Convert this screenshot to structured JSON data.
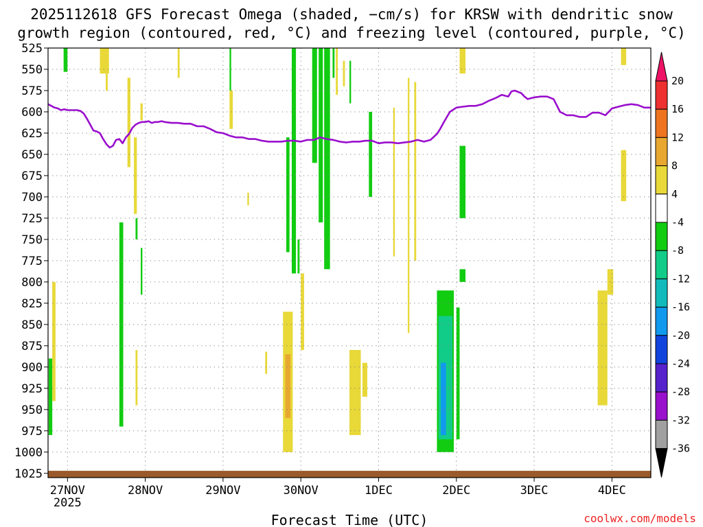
{
  "title_line1": "2025112618 GFS Forecast Omega (shaded, −cm/s) for KRSW with dendritic snow",
  "title_line2": "growth region (contoured, red, °C) and freezing level (contoured, purple, °C)",
  "credit": "coolwx.com/models",
  "colors": {
    "freezing_level": "#9a0ecd",
    "ground": "#9b5a2b",
    "grid": "#808080"
  },
  "chart_data": {
    "type": "heatmap",
    "title": "2025112618 GFS Forecast Omega (shaded, −cm/s) for KRSW with dendritic snow growth region (contoured, red, °C) and freezing level (contoured, purple, °C)",
    "xlabel": "Forecast Time (UTC)",
    "ylabel": "",
    "x_range_hours": [
      0,
      186
    ],
    "y_range_hpa": [
      525,
      1030
    ],
    "y_ticks": [
      "525",
      "550",
      "575",
      "600",
      "625",
      "650",
      "675",
      "700",
      "725",
      "750",
      "775",
      "800",
      "825",
      "850",
      "875",
      "900",
      "925",
      "950",
      "975",
      "1000",
      "1025"
    ],
    "x_ticks": [
      {
        "label": "27NOV",
        "sub": "2025",
        "hour": 6
      },
      {
        "label": "28NOV",
        "sub": "",
        "hour": 30
      },
      {
        "label": "29NOV",
        "sub": "",
        "hour": 54
      },
      {
        "label": "30NOV",
        "sub": "",
        "hour": 78
      },
      {
        "label": "1DEC",
        "sub": "",
        "hour": 102
      },
      {
        "label": "2DEC",
        "sub": "",
        "hour": 126
      },
      {
        "label": "3DEC",
        "sub": "",
        "hour": 150
      },
      {
        "label": "4DEC",
        "sub": "",
        "hour": 174
      }
    ],
    "colorbar": {
      "labels": [
        "20",
        "16",
        "12",
        "8",
        "4",
        "-4",
        "-8",
        "-12",
        "-16",
        "-20",
        "-24",
        "-28",
        "-32",
        "-36"
      ],
      "colors": [
        "#ee1366",
        "#ee3030",
        "#ee7420",
        "#e8a830",
        "#e8d838",
        "#ffffff",
        "#11cc11",
        "#11cc88",
        "#11bbbb",
        "#1199ee",
        "#1144dd",
        "#5522cc",
        "#9911cc",
        "#a0a0a0"
      ]
    },
    "freezing_level": {
      "hours": [
        0,
        1,
        2,
        3,
        4,
        5,
        6,
        7,
        8,
        9,
        10,
        11,
        12,
        13,
        14,
        15,
        16,
        17,
        18,
        19,
        20,
        21,
        22,
        23,
        24,
        25,
        26,
        27,
        28,
        29,
        30,
        31,
        32,
        33,
        34,
        35,
        36,
        38,
        40,
        42,
        44,
        46,
        48,
        50,
        52,
        54,
        56,
        58,
        60,
        62,
        64,
        66,
        68,
        70,
        72,
        74,
        76,
        78,
        80,
        82,
        84,
        86,
        88,
        90,
        92,
        94,
        96,
        98,
        100,
        102,
        104,
        106,
        108,
        110,
        112,
        114,
        116,
        118,
        120,
        121,
        122,
        124,
        126,
        128,
        130,
        132,
        134,
        136,
        138,
        140,
        142,
        143,
        144,
        146,
        147,
        148,
        150,
        152,
        154,
        156,
        158,
        160,
        162,
        164,
        166,
        168,
        170,
        172,
        174,
        176,
        178,
        180,
        182,
        184,
        186
      ],
      "values_hpa": [
        591,
        593,
        595,
        596,
        598,
        597,
        598,
        598,
        598,
        598,
        599,
        602,
        608,
        615,
        622,
        623,
        625,
        632,
        638,
        642,
        640,
        633,
        632,
        637,
        630,
        626,
        619,
        615,
        613,
        612,
        612,
        611,
        613,
        612,
        612,
        611,
        612,
        613,
        613,
        614,
        614,
        617,
        617,
        620,
        624,
        625,
        628,
        630,
        630,
        632,
        632,
        634,
        635,
        635,
        635,
        634,
        634,
        635,
        633,
        633,
        630,
        632,
        633,
        635,
        636,
        635,
        635,
        634,
        634,
        637,
        636,
        636,
        637,
        636,
        635,
        633,
        635,
        633,
        626,
        620,
        613,
        600,
        595,
        594,
        593,
        593,
        591,
        587,
        584,
        580,
        582,
        576,
        575,
        578,
        582,
        585,
        583,
        582,
        582,
        585,
        600,
        604,
        604,
        606,
        606,
        601,
        601,
        604,
        596,
        594,
        592,
        591,
        592,
        595,
        595
      ],
      "unit": "hPa"
    },
    "omega_shading": [
      {
        "color": "#11cc11",
        "h0": 0.2,
        "h1": 1.3,
        "p0": 890,
        "p1": 980
      },
      {
        "color": "#e8d838",
        "h0": 1.3,
        "h1": 2.3,
        "p0": 800,
        "p1": 940
      },
      {
        "color": "#11cc11",
        "h0": 4.8,
        "h1": 6.0,
        "p0": 525,
        "p1": 553
      },
      {
        "color": "#e8d838",
        "h0": 16.0,
        "h1": 18.8,
        "p0": 525,
        "p1": 555
      },
      {
        "color": "#e8d838",
        "h0": 17.8,
        "h1": 18.4,
        "p0": 555,
        "p1": 575
      },
      {
        "color": "#11cc11",
        "h0": 22.0,
        "h1": 23.2,
        "p0": 730,
        "p1": 970
      },
      {
        "color": "#e8d838",
        "h0": 24.5,
        "h1": 25.4,
        "p0": 560,
        "p1": 665
      },
      {
        "color": "#e8d838",
        "h0": 26.5,
        "h1": 27.4,
        "p0": 630,
        "p1": 720
      },
      {
        "color": "#11cc11",
        "h0": 27.0,
        "h1": 27.6,
        "p0": 725,
        "p1": 750
      },
      {
        "color": "#e8d838",
        "h0": 27.0,
        "h1": 27.6,
        "p0": 880,
        "p1": 945
      },
      {
        "color": "#11cc11",
        "h0": 28.6,
        "h1": 29.1,
        "p0": 760,
        "p1": 815
      },
      {
        "color": "#e8d838",
        "h0": 28.5,
        "h1": 29.2,
        "p0": 590,
        "p1": 610
      },
      {
        "color": "#e8d838",
        "h0": 40.0,
        "h1": 40.6,
        "p0": 525,
        "p1": 560
      },
      {
        "color": "#11cc11",
        "h0": 56.0,
        "h1": 56.5,
        "p0": 525,
        "p1": 575
      },
      {
        "color": "#e8d838",
        "h0": 56.0,
        "h1": 57.0,
        "p0": 575,
        "p1": 620
      },
      {
        "color": "#e8d838",
        "h0": 61.5,
        "h1": 62.0,
        "p0": 695,
        "p1": 710
      },
      {
        "color": "#e8d838",
        "h0": 67.0,
        "h1": 67.6,
        "p0": 882,
        "p1": 908
      },
      {
        "color": "#11cc11",
        "h0": 73.5,
        "h1": 74.5,
        "p0": 630,
        "p1": 765
      },
      {
        "color": "#e8d838",
        "h0": 72.5,
        "h1": 75.5,
        "p0": 835,
        "p1": 1000
      },
      {
        "color": "#e8a830",
        "h0": 73.2,
        "h1": 74.8,
        "p0": 885,
        "p1": 960
      },
      {
        "color": "#11cc11",
        "h0": 75.2,
        "h1": 76.5,
        "p0": 525,
        "p1": 790
      },
      {
        "color": "#11cc11",
        "h0": 77.0,
        "h1": 77.6,
        "p0": 750,
        "p1": 790
      },
      {
        "color": "#e8d838",
        "h0": 78.0,
        "h1": 79.0,
        "p0": 790,
        "p1": 880
      },
      {
        "color": "#11cc11",
        "h0": 81.5,
        "h1": 83.0,
        "p0": 525,
        "p1": 660
      },
      {
        "color": "#11cc11",
        "h0": 83.5,
        "h1": 84.8,
        "p0": 525,
        "p1": 730
      },
      {
        "color": "#11cc11",
        "h0": 85.2,
        "h1": 87.0,
        "p0": 525,
        "p1": 785
      },
      {
        "color": "#11cc11",
        "h0": 87.8,
        "h1": 88.4,
        "p0": 525,
        "p1": 560
      },
      {
        "color": "#e8d838",
        "h0": 88.8,
        "h1": 89.4,
        "p0": 525,
        "p1": 580
      },
      {
        "color": "#e8d838",
        "h0": 91.0,
        "h1": 91.6,
        "p0": 540,
        "p1": 570
      },
      {
        "color": "#11cc11",
        "h0": 93.0,
        "h1": 93.5,
        "p0": 540,
        "p1": 590
      },
      {
        "color": "#e8d838",
        "h0": 93.0,
        "h1": 96.5,
        "p0": 880,
        "p1": 980
      },
      {
        "color": "#e8d838",
        "h0": 97.0,
        "h1": 98.5,
        "p0": 895,
        "p1": 935
      },
      {
        "color": "#11cc11",
        "h0": 99.0,
        "h1": 100.0,
        "p0": 600,
        "p1": 700
      },
      {
        "color": "#e8d838",
        "h0": 106.5,
        "h1": 107.0,
        "p0": 595,
        "p1": 770
      },
      {
        "color": "#e8d838",
        "h0": 111.0,
        "h1": 111.5,
        "p0": 560,
        "p1": 860
      },
      {
        "color": "#e8d838",
        "h0": 113.0,
        "h1": 113.6,
        "p0": 565,
        "p1": 775
      },
      {
        "color": "#11cc11",
        "h0": 120.0,
        "h1": 125.2,
        "p0": 810,
        "p1": 1000
      },
      {
        "color": "#11cc88",
        "h0": 120.5,
        "h1": 124.8,
        "p0": 840,
        "p1": 985
      },
      {
        "color": "#1199ee",
        "h0": 121.2,
        "h1": 122.8,
        "p0": 895,
        "p1": 980
      },
      {
        "color": "#11cc11",
        "h0": 126.0,
        "h1": 127.0,
        "p0": 830,
        "p1": 985
      },
      {
        "color": "#e8d838",
        "h0": 127.0,
        "h1": 128.8,
        "p0": 525,
        "p1": 555
      },
      {
        "color": "#11cc11",
        "h0": 127.0,
        "h1": 128.8,
        "p0": 640,
        "p1": 725
      },
      {
        "color": "#11cc11",
        "h0": 127.0,
        "h1": 128.8,
        "p0": 785,
        "p1": 800
      },
      {
        "color": "#e8d838",
        "h0": 169.6,
        "h1": 172.6,
        "p0": 810,
        "p1": 945
      },
      {
        "color": "#e8d838",
        "h0": 172.6,
        "h1": 174.4,
        "p0": 785,
        "p1": 815
      },
      {
        "color": "#e8d838",
        "h0": 176.8,
        "h1": 178.4,
        "p0": 525,
        "p1": 545
      },
      {
        "color": "#e8d838",
        "h0": 176.8,
        "h1": 178.4,
        "p0": 645,
        "p1": 705
      }
    ],
    "ground_surface_hpa": 1022,
    "grid": true,
    "legend": "colorbar-right"
  }
}
